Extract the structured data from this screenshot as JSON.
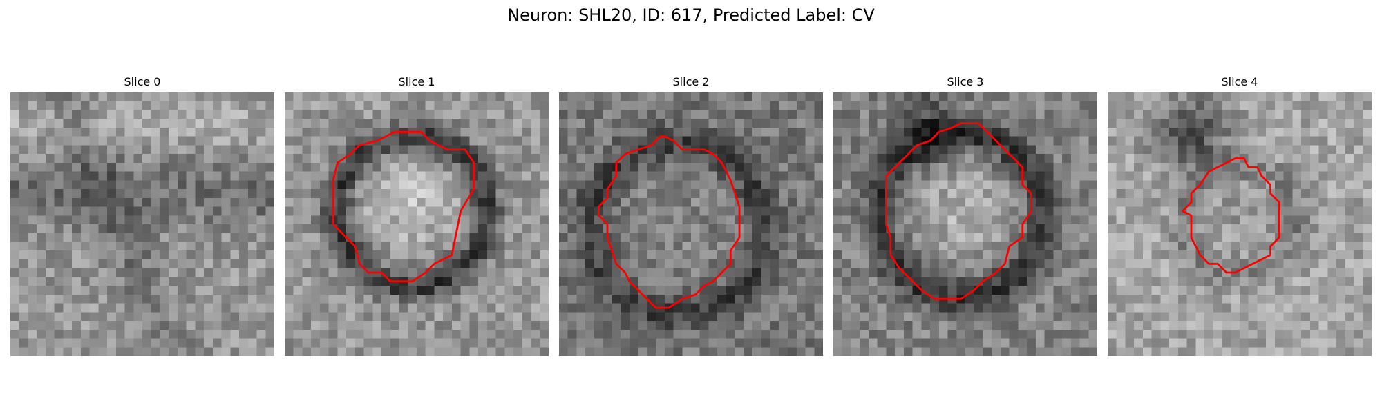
{
  "figure": {
    "title": "Neuron: SHL20, ID: 617, Predicted Label: CV",
    "contour_color": "#ff0000",
    "panels": [
      {
        "title": "Slice 0",
        "has_contour": false,
        "contour": []
      },
      {
        "title": "Slice 1",
        "has_contour": true,
        "contour": [
          [
            13.5,
            4.5
          ],
          [
            15.5,
            4.5
          ],
          [
            16.5,
            5.5
          ],
          [
            18.5,
            6.5
          ],
          [
            20.5,
            6.5
          ],
          [
            21.5,
            8.0
          ],
          [
            21.5,
            11.0
          ],
          [
            20.0,
            13.5
          ],
          [
            19.5,
            16.0
          ],
          [
            19.0,
            18.5
          ],
          [
            17.0,
            19.5
          ],
          [
            16.0,
            20.5
          ],
          [
            14.5,
            21.5
          ],
          [
            12.0,
            21.5
          ],
          [
            11.0,
            20.5
          ],
          [
            9.5,
            20.5
          ],
          [
            8.5,
            19.5
          ],
          [
            8.0,
            17.5
          ],
          [
            6.5,
            16.0
          ],
          [
            5.5,
            15.0
          ],
          [
            5.5,
            10.0
          ],
          [
            6.0,
            8.0
          ],
          [
            7.5,
            7.0
          ],
          [
            8.5,
            6.0
          ],
          [
            10.5,
            5.5
          ],
          [
            12.5,
            4.5
          ]
        ]
      },
      {
        "title": "Slice 2",
        "has_contour": true,
        "contour": [
          [
            12.0,
            5.0
          ],
          [
            13.0,
            5.5
          ],
          [
            14.0,
            6.5
          ],
          [
            16.5,
            6.5
          ],
          [
            17.5,
            7.0
          ],
          [
            18.5,
            8.0
          ],
          [
            19.0,
            9.0
          ],
          [
            19.5,
            10.0
          ],
          [
            20.0,
            11.5
          ],
          [
            20.5,
            13.0
          ],
          [
            20.5,
            16.5
          ],
          [
            19.5,
            18.0
          ],
          [
            19.5,
            19.5
          ],
          [
            18.5,
            20.5
          ],
          [
            17.5,
            21.5
          ],
          [
            16.5,
            22.0
          ],
          [
            15.5,
            23.0
          ],
          [
            14.0,
            23.5
          ],
          [
            12.5,
            24.5
          ],
          [
            11.0,
            24.5
          ],
          [
            10.0,
            23.5
          ],
          [
            9.0,
            22.5
          ],
          [
            8.0,
            21.5
          ],
          [
            7.5,
            20.5
          ],
          [
            6.5,
            19.5
          ],
          [
            6.0,
            18.0
          ],
          [
            5.5,
            16.5
          ],
          [
            5.5,
            15.0
          ],
          [
            4.5,
            14.0
          ],
          [
            4.5,
            13.0
          ],
          [
            5.5,
            12.0
          ],
          [
            5.5,
            11.0
          ],
          [
            6.5,
            9.5
          ],
          [
            6.5,
            8.0
          ],
          [
            7.5,
            7.0
          ],
          [
            9.0,
            6.5
          ],
          [
            10.5,
            6.0
          ],
          [
            11.5,
            5.0
          ]
        ]
      },
      {
        "title": "Slice 3",
        "has_contour": true,
        "contour": [
          [
            14.5,
            3.5
          ],
          [
            16.5,
            3.5
          ],
          [
            17.5,
            4.5
          ],
          [
            18.5,
            5.5
          ],
          [
            19.5,
            6.5
          ],
          [
            20.5,
            7.5
          ],
          [
            21.5,
            8.5
          ],
          [
            21.5,
            10.5
          ],
          [
            22.5,
            11.5
          ],
          [
            22.5,
            13.5
          ],
          [
            21.5,
            15.0
          ],
          [
            21.5,
            16.5
          ],
          [
            20.0,
            17.5
          ],
          [
            19.5,
            19.5
          ],
          [
            18.5,
            20.5
          ],
          [
            17.0,
            21.5
          ],
          [
            16.0,
            22.5
          ],
          [
            14.5,
            23.5
          ],
          [
            11.5,
            23.5
          ],
          [
            10.0,
            22.5
          ],
          [
            8.5,
            21.0
          ],
          [
            7.5,
            20.0
          ],
          [
            6.5,
            18.5
          ],
          [
            6.5,
            16.5
          ],
          [
            6.0,
            15.0
          ],
          [
            6.0,
            9.5
          ],
          [
            7.0,
            8.5
          ],
          [
            8.5,
            7.0
          ],
          [
            9.5,
            6.0
          ],
          [
            11.0,
            5.5
          ],
          [
            12.0,
            4.5
          ],
          [
            13.5,
            4.0
          ]
        ]
      },
      {
        "title": "Slice 4",
        "has_contour": true,
        "contour": [
          [
            14.5,
            7.5
          ],
          [
            15.5,
            7.5
          ],
          [
            16.0,
            8.5
          ],
          [
            17.0,
            8.5
          ],
          [
            17.5,
            9.5
          ],
          [
            18.5,
            10.5
          ],
          [
            18.5,
            11.5
          ],
          [
            19.5,
            12.5
          ],
          [
            19.5,
            16.5
          ],
          [
            18.5,
            17.5
          ],
          [
            18.5,
            18.5
          ],
          [
            17.5,
            19.0
          ],
          [
            16.5,
            19.5
          ],
          [
            15.5,
            20.0
          ],
          [
            14.5,
            20.5
          ],
          [
            13.5,
            20.5
          ],
          [
            12.5,
            19.5
          ],
          [
            11.5,
            19.5
          ],
          [
            10.5,
            18.5
          ],
          [
            10.0,
            17.5
          ],
          [
            9.5,
            16.5
          ],
          [
            9.5,
            14.0
          ],
          [
            8.5,
            13.5
          ],
          [
            9.5,
            12.5
          ],
          [
            9.5,
            11.5
          ],
          [
            10.5,
            10.5
          ],
          [
            11.5,
            9.0
          ],
          [
            12.5,
            8.5
          ],
          [
            13.5,
            8.0
          ]
        ]
      }
    ]
  }
}
